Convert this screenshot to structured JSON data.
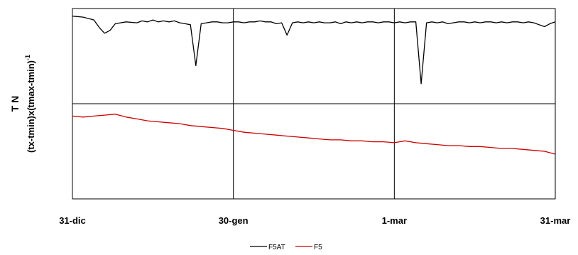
{
  "chart_data": {
    "type": "line",
    "ylabel_line1": "T N",
    "ylabel_line2": "(tx-tmin)x(tmax-tmin)",
    "ylabel_sup": "-1",
    "x_ticks": [
      "31-dic",
      "30-gen",
      "1-mar",
      "31-mar"
    ],
    "xlim": [
      0,
      90
    ],
    "grid": true,
    "legend_position": "bottom",
    "series": [
      {
        "name": "F5AT",
        "color": "#000000",
        "x": [
          0,
          2,
          4,
          5,
          6,
          7,
          8,
          10,
          12,
          13,
          14,
          15,
          16,
          17,
          18,
          19,
          20,
          21,
          22,
          23,
          24,
          25,
          26,
          27,
          28,
          29,
          30,
          31,
          32,
          33,
          34,
          35,
          36,
          37,
          38,
          39,
          40,
          41,
          42,
          43,
          44,
          45,
          46,
          47,
          48,
          49,
          50,
          51,
          52,
          53,
          54,
          55,
          56,
          57,
          58,
          59,
          60,
          61,
          62,
          63,
          64,
          65,
          66,
          67,
          68,
          69,
          70,
          71,
          72,
          73,
          74,
          75,
          76,
          77,
          78,
          79,
          80,
          81,
          82,
          83,
          84,
          85,
          86,
          87,
          88,
          89,
          90
        ],
        "y": [
          0.92,
          0.91,
          0.88,
          0.8,
          0.74,
          0.77,
          0.84,
          0.86,
          0.85,
          0.87,
          0.86,
          0.88,
          0.86,
          0.87,
          0.86,
          0.87,
          0.85,
          0.84,
          0.83,
          0.4,
          0.84,
          0.85,
          0.86,
          0.86,
          0.85,
          0.85,
          0.86,
          0.86,
          0.85,
          0.86,
          0.86,
          0.87,
          0.86,
          0.86,
          0.84,
          0.85,
          0.72,
          0.85,
          0.86,
          0.85,
          0.86,
          0.85,
          0.86,
          0.85,
          0.85,
          0.86,
          0.84,
          0.86,
          0.85,
          0.86,
          0.85,
          0.86,
          0.86,
          0.85,
          0.86,
          0.86,
          0.85,
          0.86,
          0.85,
          0.86,
          0.86,
          0.21,
          0.85,
          0.86,
          0.85,
          0.86,
          0.84,
          0.85,
          0.86,
          0.86,
          0.85,
          0.86,
          0.85,
          0.86,
          0.86,
          0.85,
          0.86,
          0.85,
          0.86,
          0.86,
          0.85,
          0.86,
          0.85,
          0.83,
          0.81,
          0.84,
          0.86
        ]
      },
      {
        "name": "F5",
        "color": "#cc0000",
        "x": [
          0,
          2,
          4,
          6,
          8,
          10,
          12,
          14,
          16,
          18,
          20,
          22,
          24,
          26,
          28,
          30,
          32,
          34,
          36,
          38,
          40,
          42,
          44,
          46,
          48,
          50,
          52,
          54,
          56,
          58,
          60,
          62,
          64,
          66,
          68,
          70,
          72,
          74,
          76,
          78,
          80,
          82,
          84,
          86,
          88,
          90
        ],
        "y": [
          -0.13,
          -0.14,
          -0.13,
          -0.12,
          -0.11,
          -0.14,
          -0.16,
          -0.18,
          -0.19,
          -0.2,
          -0.21,
          -0.23,
          -0.24,
          -0.25,
          -0.26,
          -0.28,
          -0.3,
          -0.31,
          -0.32,
          -0.33,
          -0.34,
          -0.35,
          -0.36,
          -0.37,
          -0.38,
          -0.38,
          -0.39,
          -0.39,
          -0.4,
          -0.4,
          -0.41,
          -0.39,
          -0.41,
          -0.42,
          -0.43,
          -0.44,
          -0.44,
          -0.45,
          -0.45,
          -0.46,
          -0.47,
          -0.47,
          -0.48,
          -0.49,
          -0.5,
          -0.53
        ]
      }
    ]
  }
}
